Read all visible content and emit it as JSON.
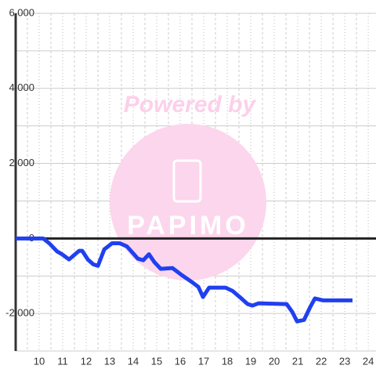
{
  "chart_data": {
    "type": "line",
    "watermark": {
      "top": "Powered by",
      "bottom": "PAPIMO"
    },
    "x": [
      9.0,
      10.17,
      10.43,
      10.77,
      10.97,
      11.27,
      11.7,
      11.83,
      12.07,
      12.3,
      12.5,
      12.77,
      13.1,
      13.43,
      13.73,
      14.2,
      14.43,
      14.67,
      14.9,
      15.17,
      15.67,
      16.03,
      16.47,
      16.77,
      16.97,
      17.23,
      17.93,
      18.23,
      18.53,
      18.87,
      19.07,
      19.33,
      20.53,
      20.77,
      20.97,
      21.27,
      21.53,
      21.73,
      22.07,
      23.33
    ],
    "series": [
      {
        "color": "#2040f0",
        "values": [
          0,
          0,
          -130,
          -350,
          -420,
          -560,
          -330,
          -330,
          -560,
          -690,
          -730,
          -290,
          -130,
          -130,
          -210,
          -540,
          -580,
          -420,
          -630,
          -810,
          -790,
          -960,
          -1150,
          -1290,
          -1560,
          -1310,
          -1310,
          -1400,
          -1560,
          -1750,
          -1790,
          -1730,
          -1750,
          -1960,
          -2210,
          -2170,
          -1830,
          -1600,
          -1650,
          -1650
        ]
      }
    ],
    "xlim": [
      9,
      24.33
    ],
    "ylim": [
      -3000,
      6000
    ],
    "xticks": [
      10,
      11,
      12,
      13,
      14,
      15,
      16,
      17,
      18,
      19,
      20,
      21,
      22,
      23,
      24
    ],
    "xminor_ticks": [
      9.5,
      10.5,
      11.5,
      12.5,
      13.5,
      14.5,
      15.5,
      16.5,
      17.5,
      18.5,
      19.5,
      20.5,
      21.5,
      22.5,
      23.5
    ],
    "yticks": [
      {
        "value": -2000,
        "label": "-2,000"
      },
      0,
      {
        "value": 2000,
        "label": "2,000"
      },
      {
        "value": 4000,
        "label": "4,000"
      },
      {
        "value": 6000,
        "label": "6,000"
      }
    ],
    "yminor_ticks": [
      -3000,
      -1000,
      1000,
      3000,
      5000
    ],
    "grid": true
  }
}
